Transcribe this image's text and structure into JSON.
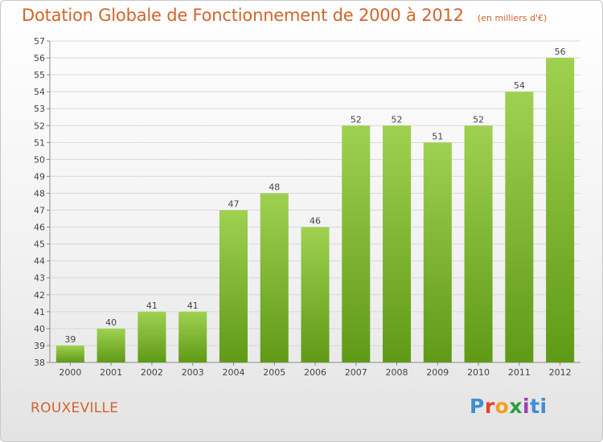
{
  "title": "Dotation Globale de Fonctionnement de 2000 à 2012",
  "unit_label": "(en milliers d'€)",
  "commune": "ROUXEVILLE",
  "logo": {
    "text": "Proxiti",
    "icon": "proxiti-logo"
  },
  "colors": {
    "title": "#d2642b",
    "bar_top": "#9fd150",
    "bar_bottom": "#5f9a16",
    "grid": "#d9d9d9",
    "axis": "#8a8a8a",
    "text": "#444444"
  },
  "chart_data": {
    "type": "bar",
    "title": "Dotation Globale de Fonctionnement de 2000 à 2012",
    "subtitle": "(en milliers d'€)",
    "xlabel": "",
    "ylabel": "",
    "categories": [
      "2000",
      "2001",
      "2002",
      "2003",
      "2004",
      "2005",
      "2006",
      "2007",
      "2008",
      "2009",
      "2010",
      "2011",
      "2012"
    ],
    "values": [
      39,
      40,
      41,
      41,
      47,
      48,
      46,
      52,
      52,
      51,
      52,
      54,
      56
    ],
    "ylim": [
      38,
      57
    ],
    "yticks": [
      38,
      39,
      40,
      41,
      42,
      43,
      44,
      45,
      46,
      47,
      48,
      49,
      50,
      51,
      52,
      53,
      54,
      55,
      56,
      57
    ],
    "grid": true,
    "data_labels": true,
    "legend": "none"
  }
}
